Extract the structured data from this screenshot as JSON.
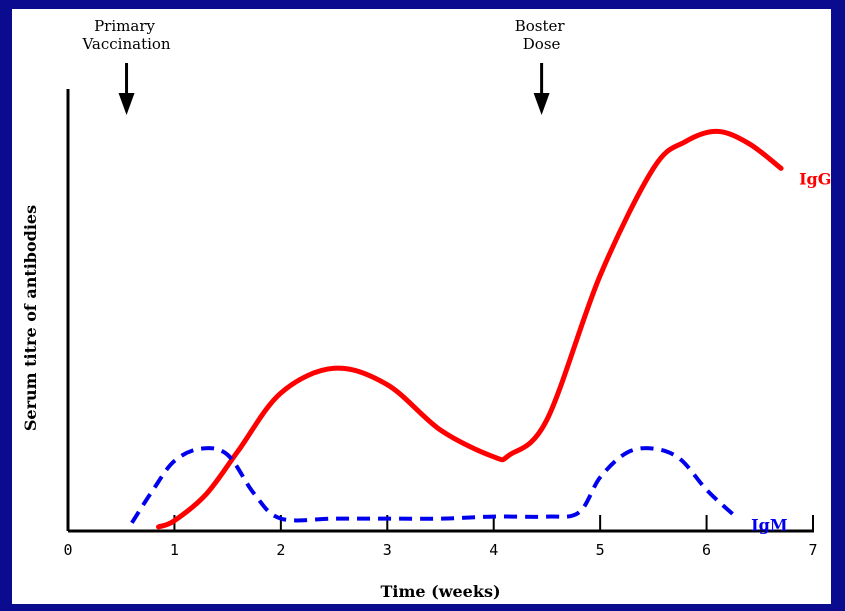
{
  "chart_data": {
    "type": "line",
    "title": "",
    "xlabel": "Time (weeks)",
    "ylabel": "Serum titre of antibodies",
    "xlim": [
      0,
      7
    ],
    "ylim": [
      0,
      10
    ],
    "x_ticks": [
      0,
      1,
      2,
      3,
      4,
      5,
      6,
      7
    ],
    "x_tick_labels": [
      "0",
      "1",
      "2",
      "3",
      "4",
      "5",
      "6",
      "7"
    ],
    "y_ticks": [],
    "grid": false,
    "legend": "none (series labelled directly at line ends)",
    "series": [
      {
        "name": "IgG",
        "style": "solid",
        "color": "#ff0000",
        "x": [
          0.85,
          1.0,
          1.3,
          1.6,
          2.0,
          2.5,
          3.0,
          3.5,
          4.0,
          4.15,
          4.5,
          5.0,
          5.5,
          5.8,
          6.1,
          6.4,
          6.7
        ],
        "y": [
          0.1,
          0.25,
          0.9,
          1.95,
          3.35,
          3.95,
          3.55,
          2.45,
          1.8,
          1.85,
          2.7,
          6.2,
          8.8,
          9.45,
          9.7,
          9.4,
          8.8
        ]
      },
      {
        "name": "IgM",
        "style": "dashed",
        "color": "#0000ee",
        "x": [
          0.6,
          0.8,
          1.0,
          1.25,
          1.5,
          1.75,
          2.0,
          2.5,
          3.0,
          3.5,
          4.0,
          4.5,
          4.8,
          5.0,
          5.25,
          5.5,
          5.75,
          6.0,
          6.25
        ],
        "y": [
          0.2,
          1.0,
          1.7,
          2.0,
          1.85,
          0.9,
          0.3,
          0.3,
          0.3,
          0.3,
          0.35,
          0.35,
          0.45,
          1.3,
          1.9,
          2.0,
          1.75,
          1.0,
          0.4
        ]
      }
    ],
    "annotations": [
      {
        "lines": [
          "Primary",
          "Vaccination"
        ],
        "x": 0.55,
        "arrow": "down"
      },
      {
        "lines": [
          "Boster",
          "Dose"
        ],
        "x": 4.45,
        "arrow": "down"
      }
    ]
  },
  "colors": {
    "border": "#0b0b8f",
    "background": "#ffffff",
    "igg": "#ff0000",
    "igm": "#0000ee"
  }
}
